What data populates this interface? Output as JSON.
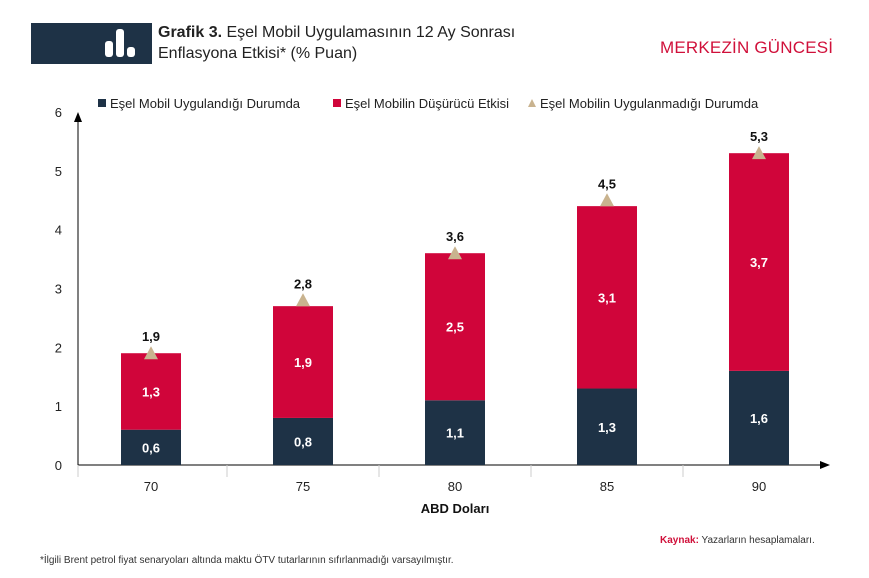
{
  "header": {
    "title_bold": "Grafik 3.",
    "title_line1": "Eşel Mobil Uygulamasının 12 Ay Sonrası",
    "title_line2": "Enflasyona Etkisi* (% Puan)",
    "brand": "MERKEZİN GÜNCESİ"
  },
  "footer": {
    "source_label": "Kaynak:",
    "source_text": "Yazarların hesaplamaları.",
    "note": "*İlgili Brent petrol fiyat senaryoları altında maktu ÖTV tutarlarının sıfırlanmadığı varsayılmıştır."
  },
  "chart_data": {
    "type": "bar",
    "stacked": true,
    "categories": [
      "70",
      "75",
      "80",
      "85",
      "90"
    ],
    "xlabel": "ABD Doları",
    "ylabel": "",
    "ylim": [
      0,
      6
    ],
    "yticks": [
      "0",
      "1",
      "2",
      "3",
      "4",
      "5",
      "6"
    ],
    "legend_position": "top",
    "series": [
      {
        "name": "Eşel Mobil Uygulandığı Durumda",
        "type": "bar",
        "color": "#1e3246",
        "values": [
          0.6,
          0.8,
          1.1,
          1.3,
          1.6
        ],
        "labels": [
          "0,6",
          "0,8",
          "1,1",
          "1,3",
          "1,6"
        ]
      },
      {
        "name": "Eşel Mobilin Düşürücü Etkisi",
        "type": "bar",
        "color": "#d0053a",
        "values": [
          1.3,
          1.9,
          2.5,
          3.1,
          3.7
        ],
        "labels": [
          "1,3",
          "1,9",
          "2,5",
          "3,1",
          "3,7"
        ]
      },
      {
        "name": "Eşel Mobilin Uygulanmadığı Durumda",
        "type": "marker-triangle",
        "color": "#c9b38f",
        "values": [
          1.9,
          2.8,
          3.6,
          4.5,
          5.3
        ],
        "labels": [
          "1,9",
          "2,8",
          "3,6",
          "4,5",
          "5,3"
        ]
      }
    ]
  }
}
